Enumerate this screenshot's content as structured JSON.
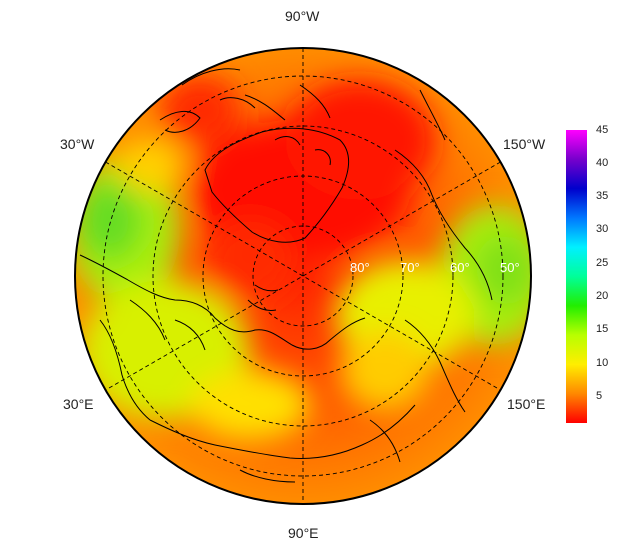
{
  "map": {
    "projection": "north-polar-stereographic",
    "longitude_labels": {
      "top": "90°W",
      "upper_left": "30°W",
      "upper_right": "150°W",
      "lower_left": "30°E",
      "lower_right": "150°E",
      "bottom": "90°E"
    },
    "latitude_labels": [
      "80°",
      "70°",
      "60°",
      "50°"
    ],
    "colors": {
      "cold_core": "#ff1a00",
      "outer_ring": "#ff8c00",
      "gridline": "#000000",
      "coastline": "#000000"
    },
    "patches": [
      {
        "name": "north-atlantic-green",
        "value": 17
      },
      {
        "name": "north-pacific-green",
        "value": 16
      },
      {
        "name": "eurasia-yellow",
        "value": 10
      },
      {
        "name": "siberia-yellow",
        "value": 9
      },
      {
        "name": "arctic-red",
        "value": 2
      }
    ]
  },
  "colorbar": {
    "ticks": [
      "45",
      "40",
      "35",
      "30",
      "25",
      "20",
      "15",
      "10",
      "5"
    ],
    "min": 1,
    "max": 45,
    "gradient": [
      "#ff0000",
      "#ff8800",
      "#ffee00",
      "#b8ff00",
      "#22ee00",
      "#00ff99",
      "#00f0ff",
      "#0077ff",
      "#0000cc",
      "#7700cc",
      "#ff00ff"
    ]
  }
}
